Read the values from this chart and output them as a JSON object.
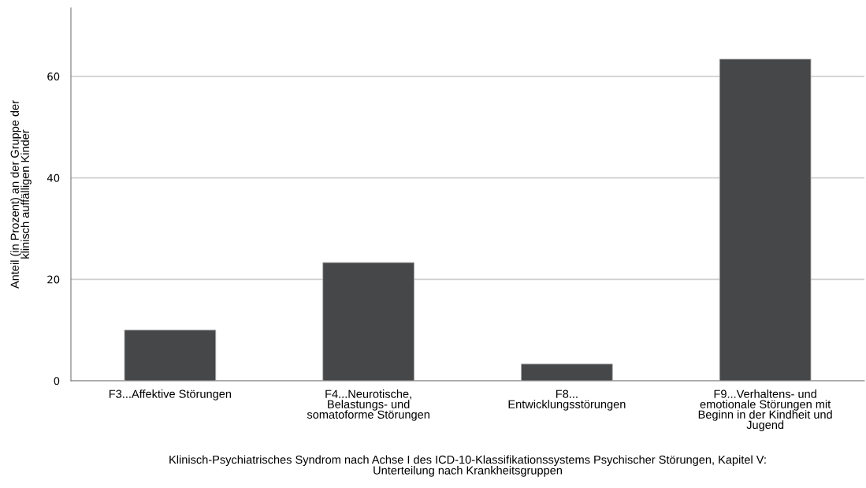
{
  "chart_data": {
    "type": "bar",
    "xlabel": "Klinisch-Psychiatrisches Syndrom nach Achse I des ICD-10-Klassifikationssystems Psychischer Störungen, Kapitel V:\nUnterteilung nach Krankheitsgruppen",
    "ylabel": "Anteil (in Prozent) an der Gruppe der\nklinisch auffälligen Kinder",
    "categories": [
      "F3...Affektive Störungen",
      "F4...Neurotische,\nBelastungs- und\nsomatoforme Störungen",
      "F8...\nEntwicklungsstörungen",
      "F9...Verhaltens- und\nemotionale Störungen mit\nBeginn in der Kindheit und\nJugend"
    ],
    "values": [
      10.0,
      23.3,
      3.3,
      63.4
    ],
    "color": "#464749",
    "ylim": [
      0,
      73.5
    ],
    "yticks": [
      0,
      20,
      40,
      60
    ],
    "grid": "y",
    "legend": false
  }
}
